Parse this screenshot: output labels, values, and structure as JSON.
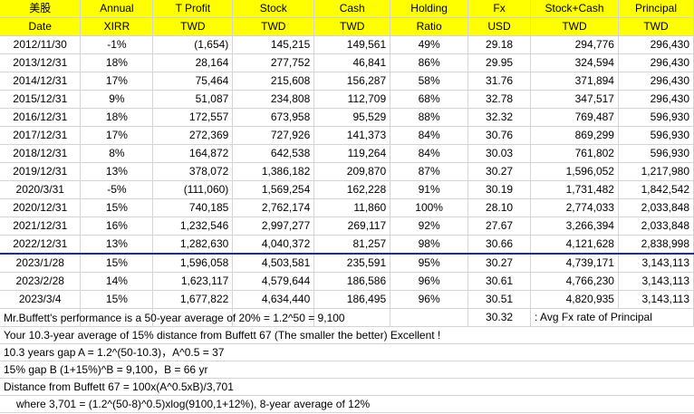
{
  "header": {
    "row1": [
      "美股",
      "Annual",
      "T Profit",
      "Stock",
      "Cash",
      "Holding",
      "Fx",
      "Stock+Cash",
      "Principal"
    ],
    "row2": [
      "Date",
      "XIRR",
      "TWD",
      "TWD",
      "TWD",
      "Ratio",
      "USD",
      "TWD",
      "TWD"
    ]
  },
  "rows": [
    [
      "2012/11/30",
      "-1%",
      "(1,654)",
      "145,215",
      "149,561",
      "49%",
      "29.18",
      "294,776",
      "296,430"
    ],
    [
      "2013/12/31",
      "18%",
      "28,164",
      "277,752",
      "46,841",
      "86%",
      "29.95",
      "324,594",
      "296,430"
    ],
    [
      "2014/12/31",
      "17%",
      "75,464",
      "215,608",
      "156,287",
      "58%",
      "31.76",
      "371,894",
      "296,430"
    ],
    [
      "2015/12/31",
      "9%",
      "51,087",
      "234,808",
      "112,709",
      "68%",
      "32.78",
      "347,517",
      "296,430"
    ],
    [
      "2016/12/31",
      "18%",
      "172,557",
      "673,958",
      "95,529",
      "88%",
      "32.32",
      "769,487",
      "596,930"
    ],
    [
      "2017/12/31",
      "17%",
      "272,369",
      "727,926",
      "141,373",
      "84%",
      "30.76",
      "869,299",
      "596,930"
    ],
    [
      "2018/12/31",
      "8%",
      "164,872",
      "642,538",
      "119,264",
      "84%",
      "30.03",
      "761,802",
      "596,930"
    ],
    [
      "2019/12/31",
      "13%",
      "378,072",
      "1,386,182",
      "209,870",
      "87%",
      "30.27",
      "1,596,052",
      "1,217,980"
    ],
    [
      "2020/3/31",
      "-5%",
      "(111,060)",
      "1,569,254",
      "162,228",
      "91%",
      "30.19",
      "1,731,482",
      "1,842,542"
    ],
    [
      "2020/12/31",
      "15%",
      "740,185",
      "2,762,174",
      "11,860",
      "100%",
      "28.10",
      "2,774,033",
      "2,033,848"
    ],
    [
      "2021/12/31",
      "16%",
      "1,232,546",
      "2,997,277",
      "269,117",
      "92%",
      "27.67",
      "3,266,394",
      "2,033,848"
    ],
    [
      "2022/12/31",
      "13%",
      "1,282,630",
      "4,040,372",
      "81,257",
      "98%",
      "30.66",
      "4,121,628",
      "2,838,998"
    ],
    [
      "2023/1/28",
      "15%",
      "1,596,058",
      "4,503,581",
      "235,591",
      "95%",
      "30.27",
      "4,739,171",
      "3,143,113"
    ],
    [
      "2023/2/28",
      "14%",
      "1,623,117",
      "4,579,644",
      "186,586",
      "96%",
      "30.61",
      "4,766,230",
      "3,143,113"
    ],
    [
      "2023/3/4",
      "15%",
      "1,677,822",
      "4,634,440",
      "186,495",
      "96%",
      "30.51",
      "4,820,935",
      "3,143,113"
    ]
  ],
  "avg_fx": {
    "value": "30.32",
    "label": ": Avg Fx rate of Principal"
  },
  "notes": [
    "Mr.Buffett's performance is a 50-year average of 20% = 1.2^50 = 9,100",
    "Your 10.3-year average of 15% distance from Buffett 67 (The smaller the better) Excellent !",
    "10.3 years gap A = 1.2^(50-10.3)，A^0.5 = 37",
    "15% gap B (1+15%)^B = 9,100，B = 66 yr",
    "Distance from Buffett 67 = 100x(A^0.5xB)/3,701",
    "where 3,701 = (1.2^(50-8)^0.5)xlog(9100,1+12%), 8-year average of 12%"
  ],
  "colors": {
    "header_bg": "#ffff00",
    "separator": "#1f2f8f",
    "grid": "#d4d4d4"
  }
}
